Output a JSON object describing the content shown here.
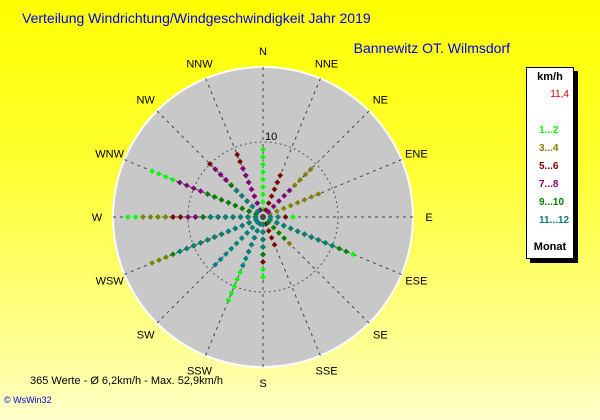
{
  "header": {
    "title": "Verteilung Windrichtung/Windgeschwindigkeit  Jahr 2019",
    "station": "Bannewitz OT. Wilmsdorf"
  },
  "footer": {
    "stats": "365 Werte   -   Ø 6,2km/h  -  Max. 52,9km/h",
    "credit": "© WsWin32"
  },
  "legend": {
    "unit": "km/h",
    "max_value": "11,4",
    "items": [
      {
        "label": "1...2",
        "color": "#00ff00"
      },
      {
        "label": "3...4",
        "color": "#808000"
      },
      {
        "label": "5...6",
        "color": "#800000"
      },
      {
        "label": "7...8",
        "color": "#800080"
      },
      {
        "label": "9...10",
        "color": "#008000"
      },
      {
        "label": "11...12",
        "color": "#008080"
      }
    ],
    "footer": "Monat"
  },
  "chart_data": {
    "type": "scatter",
    "subtype": "polar wind rose",
    "directions": [
      "N",
      "NNE",
      "NE",
      "ENE",
      "E",
      "ESE",
      "SE",
      "SSE",
      "S",
      "SSW",
      "SW",
      "WSW",
      "W",
      "WNW",
      "NW",
      "NNW"
    ],
    "radial_label": "10",
    "radial_max": 20,
    "series": [
      {
        "name": "1...2",
        "color": "#00ff00",
        "points": [
          [
            "W",
            18
          ],
          [
            "WNW",
            16
          ],
          [
            "WSW",
            15
          ],
          [
            "ESE",
            13
          ],
          [
            "SSW",
            12
          ],
          [
            "N",
            9
          ],
          [
            "E",
            4
          ],
          [
            "S",
            8
          ],
          [
            "SW",
            6
          ],
          [
            "NNE",
            5
          ]
        ]
      },
      {
        "name": "3...4",
        "color": "#808000",
        "points": [
          [
            "NE",
            9
          ],
          [
            "W",
            16
          ],
          [
            "WSW",
            16
          ],
          [
            "ENE",
            8
          ],
          [
            "ESE",
            9
          ],
          [
            "NW",
            7
          ],
          [
            "SE",
            5
          ],
          [
            "S",
            3
          ],
          [
            "SSW",
            4
          ]
        ]
      },
      {
        "name": "5...6",
        "color": "#800000",
        "points": [
          [
            "W",
            12
          ],
          [
            "WSW",
            10
          ],
          [
            "NNW",
            9
          ],
          [
            "NW",
            10
          ],
          [
            "S",
            6
          ],
          [
            "ESE",
            7
          ],
          [
            "E",
            3
          ],
          [
            "SSE",
            4
          ],
          [
            "NNE",
            6
          ]
        ]
      },
      {
        "name": "7...8",
        "color": "#800080",
        "points": [
          [
            "WNW",
            12
          ],
          [
            "W",
            10
          ],
          [
            "NW",
            9
          ],
          [
            "NNW",
            7
          ],
          [
            "WSW",
            8
          ],
          [
            "ESE",
            6
          ],
          [
            "NE",
            5
          ],
          [
            "SSW",
            5
          ]
        ]
      },
      {
        "name": "9...10",
        "color": "#008000",
        "points": [
          [
            "WSW",
            13
          ],
          [
            "W",
            8
          ],
          [
            "ESE",
            12
          ],
          [
            "WNW",
            8
          ],
          [
            "NW",
            6
          ],
          [
            "SE",
            4
          ],
          [
            "S",
            5
          ],
          [
            "SW",
            4
          ]
        ]
      },
      {
        "name": "11...12",
        "color": "#008080",
        "points": [
          [
            "WSW",
            12
          ],
          [
            "ESE",
            10
          ],
          [
            "SW",
            9
          ],
          [
            "W",
            7
          ],
          [
            "SSW",
            7
          ],
          [
            "NW",
            5
          ],
          [
            "S",
            4
          ],
          [
            "E",
            2
          ]
        ]
      }
    ]
  }
}
